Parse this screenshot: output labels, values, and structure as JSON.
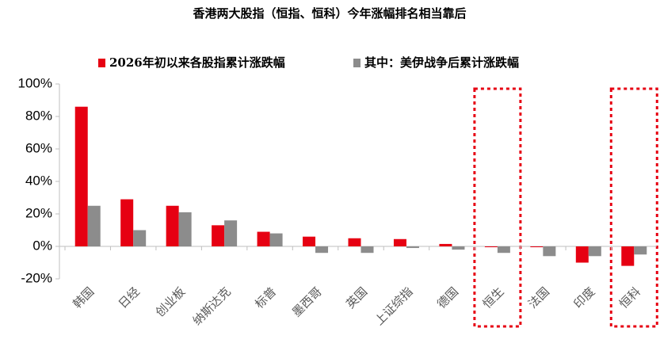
{
  "chart_data": {
    "type": "bar",
    "title": "香港两大股指（恒指、恒科）今年涨幅排名相当靠后",
    "categories": [
      "韩国",
      "日经",
      "创业板",
      "纳斯达克",
      "标普",
      "墨西哥",
      "英国",
      "上证综指",
      "德国",
      "恒生",
      "法国",
      "印度",
      "恒科"
    ],
    "series": [
      {
        "name": "2026年初以来各股指累计涨跌幅",
        "color": "#e60012",
        "values": [
          86,
          29,
          25,
          13,
          9,
          6,
          5,
          4.5,
          1.5,
          -0.5,
          -0.5,
          -10,
          -12
        ]
      },
      {
        "name": "其中：美伊战争后累计涨跌幅",
        "color": "#8c8c8c",
        "values": [
          25,
          10,
          21,
          16,
          8,
          -4,
          -4,
          -1,
          -2,
          -4,
          -6,
          -6,
          -5
        ]
      }
    ],
    "ylim": [
      -20,
      100
    ],
    "yticks": [
      {
        "value": -20,
        "label": "-20%"
      },
      {
        "value": 0,
        "label": "0%"
      },
      {
        "value": 20,
        "label": "20%"
      },
      {
        "value": 40,
        "label": "40%"
      },
      {
        "value": 60,
        "label": "60%"
      },
      {
        "value": 80,
        "label": "80%"
      },
      {
        "value": 100,
        "label": "100%"
      }
    ],
    "legend": "top",
    "highlight": [
      9,
      12
    ]
  }
}
